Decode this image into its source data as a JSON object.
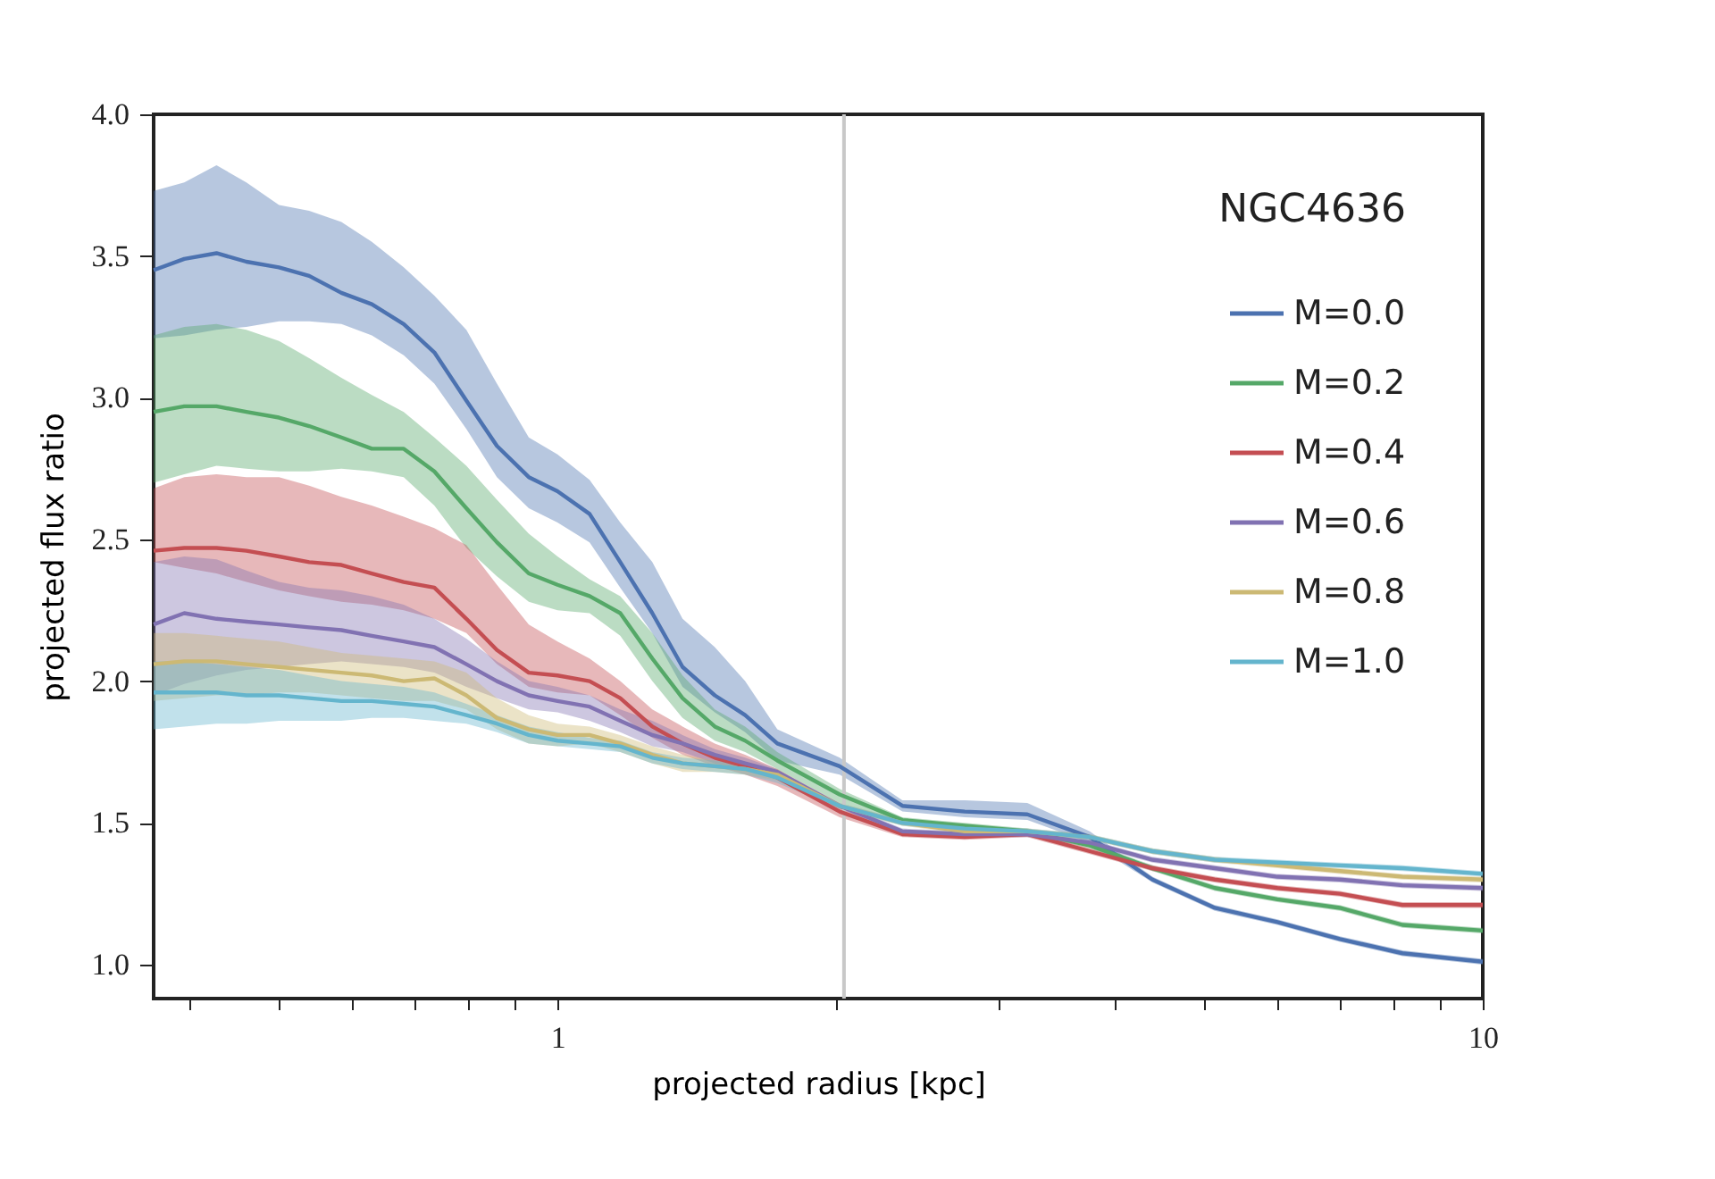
{
  "chart_data": {
    "type": "line",
    "xlabel": "projected radius [kpc]",
    "ylabel": "projected flux ratio",
    "legend_title": "NGC4636",
    "legend": "top right",
    "log": "x",
    "grid": false,
    "marker": "none",
    "line_style": "solid",
    "xlim": [
      0.366,
      10
    ],
    "ylim": [
      0.88,
      4.0
    ],
    "xticks": [
      {
        "value": 0.4,
        "label": null
      },
      {
        "value": 0.5,
        "label": null
      },
      {
        "value": 0.6,
        "label": null
      },
      {
        "value": 0.7,
        "label": null
      },
      {
        "value": 0.8,
        "label": null
      },
      {
        "value": 0.9,
        "label": null
      },
      1,
      {
        "value": 2,
        "label": null
      },
      {
        "value": 3,
        "label": null
      },
      {
        "value": 4,
        "label": null
      },
      {
        "value": 5,
        "label": null
      },
      {
        "value": 6,
        "label": null
      },
      {
        "value": 7,
        "label": null
      },
      {
        "value": 8,
        "label": null
      },
      {
        "value": 9,
        "label": null
      },
      10
    ],
    "yticks": [
      {
        "value": 1,
        "label": "1.0"
      },
      {
        "value": 1.5,
        "label": "1.5"
      },
      {
        "value": 2,
        "label": "2.0"
      },
      {
        "value": 2.5,
        "label": "2.5"
      },
      {
        "value": 3,
        "label": "3.0"
      },
      {
        "value": 3.5,
        "label": "3.5"
      },
      {
        "value": 4,
        "label": "4.0"
      }
    ],
    "ref_lines": [
      {
        "axis": "x",
        "value": 2.04,
        "color": "#c8c8c8"
      }
    ],
    "x": [
      0.366,
      0.395,
      0.428,
      0.461,
      0.5,
      0.539,
      0.584,
      0.63,
      0.682,
      0.736,
      0.797,
      0.86,
      0.931,
      1.0,
      1.083,
      1.169,
      1.266,
      1.365,
      1.479,
      1.595,
      1.728,
      2.018,
      2.359,
      2.755,
      3.219,
      3.761,
      4.395,
      5.133,
      5.998,
      7.008,
      8.188,
      10
    ],
    "series": [
      {
        "name": "M=0.0",
        "color": "#4c72b0",
        "values": [
          3.45,
          3.49,
          3.51,
          3.48,
          3.46,
          3.43,
          3.37,
          3.33,
          3.26,
          3.16,
          2.99,
          2.83,
          2.72,
          2.67,
          2.59,
          2.42,
          2.24,
          2.05,
          1.95,
          1.88,
          1.78,
          1.7,
          1.56,
          1.54,
          1.53,
          1.45,
          1.3,
          1.2,
          1.15,
          1.09,
          1.04,
          1.01
        ],
        "upper": [
          3.73,
          3.76,
          3.82,
          3.76,
          3.68,
          3.66,
          3.62,
          3.55,
          3.46,
          3.36,
          3.24,
          3.05,
          2.86,
          2.8,
          2.71,
          2.56,
          2.42,
          2.22,
          2.12,
          2.0,
          1.83,
          1.73,
          1.58,
          1.58,
          1.57,
          1.47,
          1.31,
          1.21,
          1.16,
          1.1,
          1.05,
          1.02
        ],
        "lower": [
          3.21,
          3.22,
          3.24,
          3.25,
          3.27,
          3.27,
          3.26,
          3.22,
          3.15,
          3.05,
          2.89,
          2.72,
          2.61,
          2.56,
          2.49,
          2.33,
          2.17,
          1.98,
          1.89,
          1.82,
          1.72,
          1.67,
          1.54,
          1.52,
          1.51,
          1.43,
          1.29,
          1.19,
          1.14,
          1.08,
          1.03,
          1.0
        ]
      },
      {
        "name": "M=0.2",
        "color": "#55a868",
        "values": [
          2.95,
          2.97,
          2.97,
          2.95,
          2.93,
          2.9,
          2.86,
          2.82,
          2.82,
          2.74,
          2.61,
          2.49,
          2.38,
          2.34,
          2.3,
          2.24,
          2.08,
          1.94,
          1.84,
          1.79,
          1.72,
          1.6,
          1.51,
          1.49,
          1.47,
          1.42,
          1.34,
          1.27,
          1.23,
          1.2,
          1.14,
          1.12
        ],
        "upper": [
          3.22,
          3.25,
          3.26,
          3.24,
          3.2,
          3.14,
          3.07,
          3.01,
          2.95,
          2.86,
          2.76,
          2.64,
          2.52,
          2.44,
          2.36,
          2.3,
          2.17,
          2.02,
          1.9,
          1.84,
          1.75,
          1.62,
          1.52,
          1.5,
          1.48,
          1.43,
          1.35,
          1.28,
          1.24,
          1.21,
          1.15,
          1.13
        ],
        "lower": [
          2.7,
          2.73,
          2.76,
          2.75,
          2.74,
          2.74,
          2.75,
          2.74,
          2.72,
          2.62,
          2.47,
          2.37,
          2.28,
          2.25,
          2.24,
          2.16,
          2.0,
          1.87,
          1.79,
          1.75,
          1.69,
          1.57,
          1.5,
          1.48,
          1.46,
          1.41,
          1.33,
          1.26,
          1.22,
          1.19,
          1.13,
          1.11
        ]
      },
      {
        "name": "M=0.4",
        "color": "#c44e52",
        "values": [
          2.46,
          2.47,
          2.47,
          2.46,
          2.44,
          2.42,
          2.41,
          2.38,
          2.35,
          2.33,
          2.22,
          2.11,
          2.03,
          2.02,
          2.0,
          1.94,
          1.84,
          1.78,
          1.73,
          1.7,
          1.66,
          1.54,
          1.46,
          1.45,
          1.46,
          1.4,
          1.34,
          1.3,
          1.27,
          1.25,
          1.21,
          1.21
        ],
        "upper": [
          2.68,
          2.72,
          2.73,
          2.72,
          2.72,
          2.69,
          2.65,
          2.62,
          2.58,
          2.54,
          2.48,
          2.34,
          2.2,
          2.14,
          2.08,
          2.0,
          1.9,
          1.84,
          1.78,
          1.74,
          1.69,
          1.56,
          1.47,
          1.46,
          1.47,
          1.41,
          1.35,
          1.31,
          1.28,
          1.26,
          1.22,
          1.22
        ],
        "lower": [
          2.42,
          2.4,
          2.38,
          2.35,
          2.32,
          2.3,
          2.28,
          2.27,
          2.25,
          2.22,
          2.17,
          2.06,
          1.98,
          1.96,
          1.95,
          1.88,
          1.8,
          1.74,
          1.7,
          1.67,
          1.63,
          1.52,
          1.45,
          1.44,
          1.45,
          1.39,
          1.33,
          1.29,
          1.26,
          1.24,
          1.2,
          1.2
        ]
      },
      {
        "name": "M=0.6",
        "color": "#8172b2",
        "values": [
          2.2,
          2.24,
          2.22,
          2.21,
          2.2,
          2.19,
          2.18,
          2.16,
          2.14,
          2.12,
          2.06,
          2.0,
          1.95,
          1.93,
          1.91,
          1.86,
          1.81,
          1.78,
          1.74,
          1.71,
          1.68,
          1.56,
          1.47,
          1.46,
          1.46,
          1.43,
          1.37,
          1.34,
          1.31,
          1.3,
          1.28,
          1.27
        ],
        "upper": [
          2.42,
          2.44,
          2.43,
          2.39,
          2.35,
          2.33,
          2.32,
          2.3,
          2.27,
          2.22,
          2.15,
          2.07,
          2.0,
          1.98,
          1.95,
          1.9,
          1.86,
          1.81,
          1.76,
          1.73,
          1.69,
          1.57,
          1.48,
          1.47,
          1.47,
          1.44,
          1.38,
          1.35,
          1.32,
          1.31,
          1.29,
          1.28
        ],
        "lower": [
          1.95,
          1.99,
          2.02,
          2.04,
          2.05,
          2.06,
          2.07,
          2.06,
          2.05,
          2.03,
          1.98,
          1.94,
          1.9,
          1.89,
          1.86,
          1.82,
          1.77,
          1.75,
          1.71,
          1.69,
          1.66,
          1.55,
          1.46,
          1.45,
          1.45,
          1.42,
          1.36,
          1.33,
          1.3,
          1.29,
          1.27,
          1.26
        ]
      },
      {
        "name": "M=0.8",
        "color": "#ccb974",
        "values": [
          2.06,
          2.07,
          2.07,
          2.06,
          2.05,
          2.04,
          2.03,
          2.02,
          2.0,
          2.01,
          1.95,
          1.87,
          1.83,
          1.81,
          1.81,
          1.78,
          1.74,
          1.71,
          1.7,
          1.69,
          1.67,
          1.56,
          1.5,
          1.47,
          1.47,
          1.45,
          1.4,
          1.37,
          1.35,
          1.33,
          1.31,
          1.3
        ],
        "upper": [
          2.17,
          2.17,
          2.16,
          2.15,
          2.14,
          2.12,
          2.1,
          2.09,
          2.08,
          2.07,
          2.03,
          1.94,
          1.88,
          1.85,
          1.84,
          1.81,
          1.77,
          1.74,
          1.72,
          1.71,
          1.69,
          1.57,
          1.51,
          1.48,
          1.48,
          1.46,
          1.41,
          1.38,
          1.36,
          1.34,
          1.32,
          1.31
        ],
        "lower": [
          1.93,
          1.94,
          1.95,
          1.95,
          1.96,
          1.96,
          1.95,
          1.94,
          1.93,
          1.93,
          1.9,
          1.83,
          1.78,
          1.77,
          1.78,
          1.75,
          1.71,
          1.68,
          1.68,
          1.67,
          1.65,
          1.55,
          1.49,
          1.46,
          1.46,
          1.44,
          1.39,
          1.36,
          1.34,
          1.32,
          1.3,
          1.29
        ]
      },
      {
        "name": "M=1.0",
        "color": "#64b5cd",
        "values": [
          1.96,
          1.96,
          1.96,
          1.95,
          1.95,
          1.94,
          1.93,
          1.93,
          1.92,
          1.91,
          1.88,
          1.85,
          1.81,
          1.79,
          1.78,
          1.77,
          1.73,
          1.71,
          1.7,
          1.69,
          1.66,
          1.56,
          1.5,
          1.48,
          1.47,
          1.45,
          1.4,
          1.37,
          1.36,
          1.35,
          1.34,
          1.32
        ],
        "upper": [
          2.07,
          2.07,
          2.06,
          2.05,
          2.04,
          2.02,
          2.0,
          1.99,
          1.98,
          1.96,
          1.92,
          1.88,
          1.84,
          1.82,
          1.8,
          1.79,
          1.75,
          1.73,
          1.72,
          1.71,
          1.68,
          1.57,
          1.51,
          1.49,
          1.48,
          1.46,
          1.41,
          1.38,
          1.37,
          1.36,
          1.35,
          1.33
        ],
        "lower": [
          1.83,
          1.84,
          1.85,
          1.85,
          1.86,
          1.86,
          1.86,
          1.87,
          1.87,
          1.86,
          1.85,
          1.82,
          1.78,
          1.77,
          1.76,
          1.75,
          1.71,
          1.69,
          1.68,
          1.67,
          1.64,
          1.55,
          1.49,
          1.47,
          1.46,
          1.44,
          1.39,
          1.36,
          1.35,
          1.34,
          1.33,
          1.31
        ]
      }
    ]
  }
}
